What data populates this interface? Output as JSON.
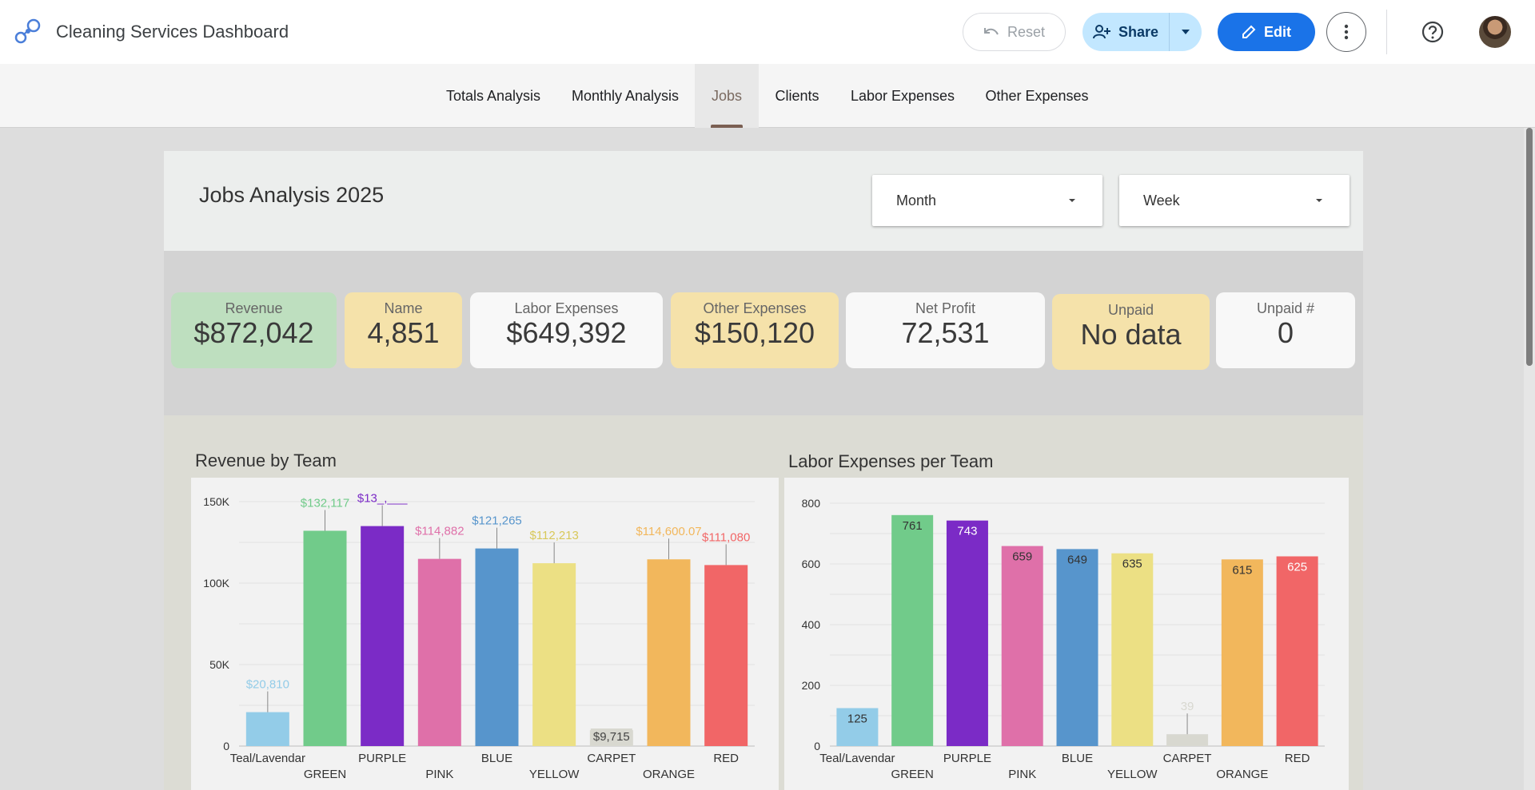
{
  "app": {
    "title": "Cleaning Services Dashboard"
  },
  "toolbar": {
    "reset_label": "Reset",
    "share_label": "Share",
    "edit_label": "Edit"
  },
  "tabs": [
    {
      "label": "Totals Analysis",
      "active": false
    },
    {
      "label": "Monthly Analysis",
      "active": false
    },
    {
      "label": "Jobs",
      "active": true
    },
    {
      "label": "Clients",
      "active": false
    },
    {
      "label": "Labor Expenses",
      "active": false
    },
    {
      "label": "Other Expenses",
      "active": false
    }
  ],
  "report": {
    "title": "Jobs Analysis 2025",
    "filters": {
      "month": "Month",
      "week": "Week"
    }
  },
  "kpis": [
    {
      "label": "Revenue",
      "value": "$872,042",
      "bg": "#bedfbf"
    },
    {
      "label": "Name",
      "value": "4,851",
      "bg": "#f5e2aa"
    },
    {
      "label": "Labor Expenses",
      "value": "$649,392",
      "bg": "#f8f8f8"
    },
    {
      "label": "Other Expenses",
      "value": "$150,120",
      "bg": "#f5e2aa"
    },
    {
      "label": "Net Profit",
      "value": "72,531",
      "bg": "#f8f8f8"
    },
    {
      "label": "Unpaid",
      "value": "No data",
      "bg": "#f5e2aa"
    },
    {
      "label": "Unpaid #",
      "value": "0",
      "bg": "#f8f8f8"
    }
  ],
  "colors": {
    "Teal/Lavendar": "#93cce8",
    "GREEN": "#71cb8a",
    "PURPLE": "#7b2bc6",
    "PINK": "#df70a9",
    "BLUE": "#5795cc",
    "YELLOW": "#ece084",
    "CARPET": "#d8d8d0",
    "ORANGE": "#f2b75c",
    "RED": "#f16667"
  },
  "chart_data": [
    {
      "type": "bar",
      "title": "Revenue by Team",
      "categories": [
        "Teal/Lavendar",
        "GREEN",
        "PURPLE",
        "PINK",
        "BLUE",
        "YELLOW",
        "CARPET",
        "ORANGE",
        "RED"
      ],
      "values": [
        20810,
        132117,
        135000,
        114882,
        121265,
        112213,
        9715,
        114600.07,
        111080
      ],
      "labels": [
        "$20,810",
        "$132,117",
        "$13_,___",
        "$114,882",
        "$121,265",
        "$112,213",
        "$9,715",
        "$114,600.07",
        "$111,080"
      ],
      "ylim": [
        0,
        150000
      ],
      "yticks": [
        0,
        50000,
        100000,
        150000
      ],
      "ytick_labels": [
        "0",
        "50K",
        "100K",
        "150K"
      ],
      "grid": true
    },
    {
      "type": "bar",
      "title": "Labor Expenses per Team",
      "categories": [
        "Teal/Lavendar",
        "GREEN",
        "PURPLE",
        "PINK",
        "BLUE",
        "YELLOW",
        "CARPET",
        "ORANGE",
        "RED"
      ],
      "values": [
        125,
        761,
        743,
        659,
        649,
        635,
        39,
        615,
        625
      ],
      "labels": [
        "125",
        "761",
        "743",
        "659",
        "649",
        "635",
        "39",
        "615",
        "625"
      ],
      "ylim": [
        0,
        800
      ],
      "yticks": [
        0,
        200,
        400,
        600,
        800
      ],
      "ytick_labels": [
        "0",
        "200",
        "400",
        "600",
        "800"
      ],
      "grid": true
    }
  ]
}
